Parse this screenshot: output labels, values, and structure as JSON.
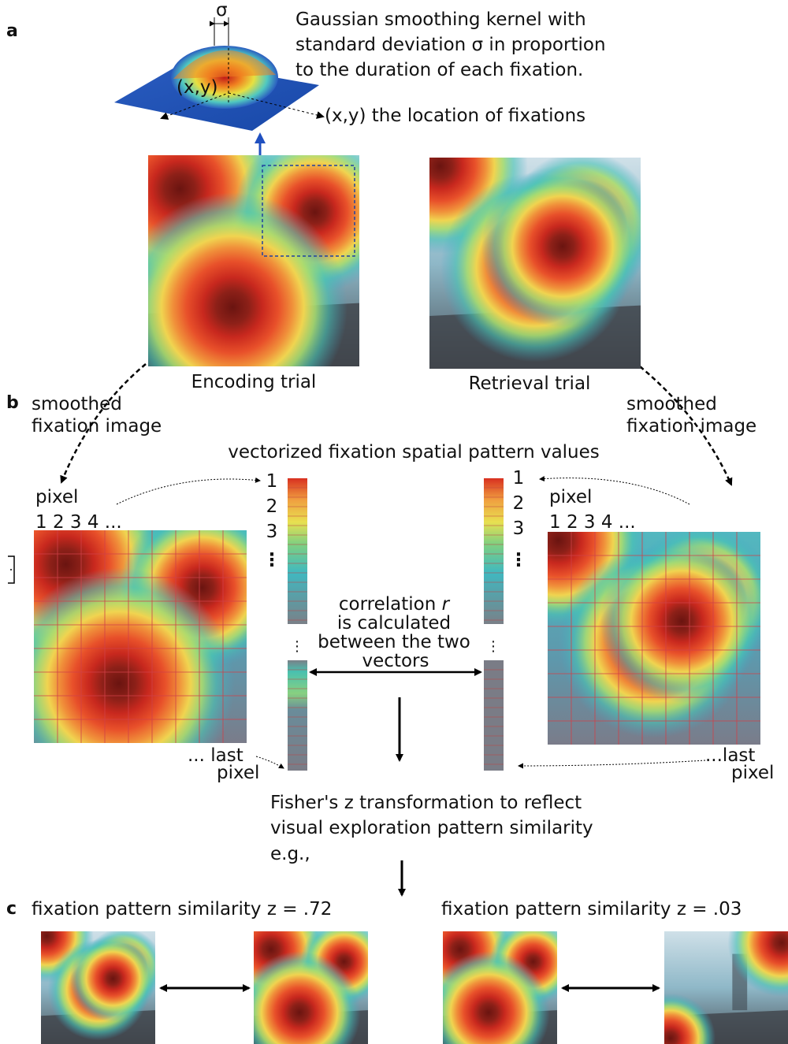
{
  "panel_a": {
    "label": "a",
    "sigma": "σ",
    "xy_label": "(x,y)",
    "kernel_text": [
      "Gaussian smoothing kernel with",
      "standard deviation σ in proportion",
      "to the duration of each fixation."
    ],
    "location_text": "(x,y) the location of fixations",
    "encoding_caption": "Encoding trial",
    "retrieval_caption": "Retrieval trial"
  },
  "panel_b": {
    "label": "b",
    "smoothed_left": [
      "smoothed",
      "fixation image"
    ],
    "smoothed_right": [
      "smoothed",
      "fixation image"
    ],
    "vector_title": "vectorized fixation spatial pattern values",
    "pixel_left": "pixel",
    "pixel_numbers_left": "1 2 3 4 ...",
    "pixel_right": "pixel",
    "pixel_numbers_right": "1 2 3 4 ...",
    "vector_indices_left": [
      "1",
      "2",
      "3",
      "⋮"
    ],
    "vector_indices_right": [
      "1",
      "2",
      "3",
      "⋮"
    ],
    "vector_gap": "⋮",
    "correlation": [
      "correlation",
      "r",
      "is calculated",
      "between the two",
      "vectors"
    ],
    "last_pixel_left": [
      "... last",
      "pixel"
    ],
    "last_pixel_right": [
      "...last",
      "pixel"
    ],
    "fisher": [
      "Fisher's z transformation to reflect",
      "visual exploration pattern similarity",
      "e.g.,"
    ]
  },
  "panel_c": {
    "label": "c",
    "left_title": "fixation pattern similarity z = .72",
    "right_title": "fixation pattern similarity z = .03"
  }
}
